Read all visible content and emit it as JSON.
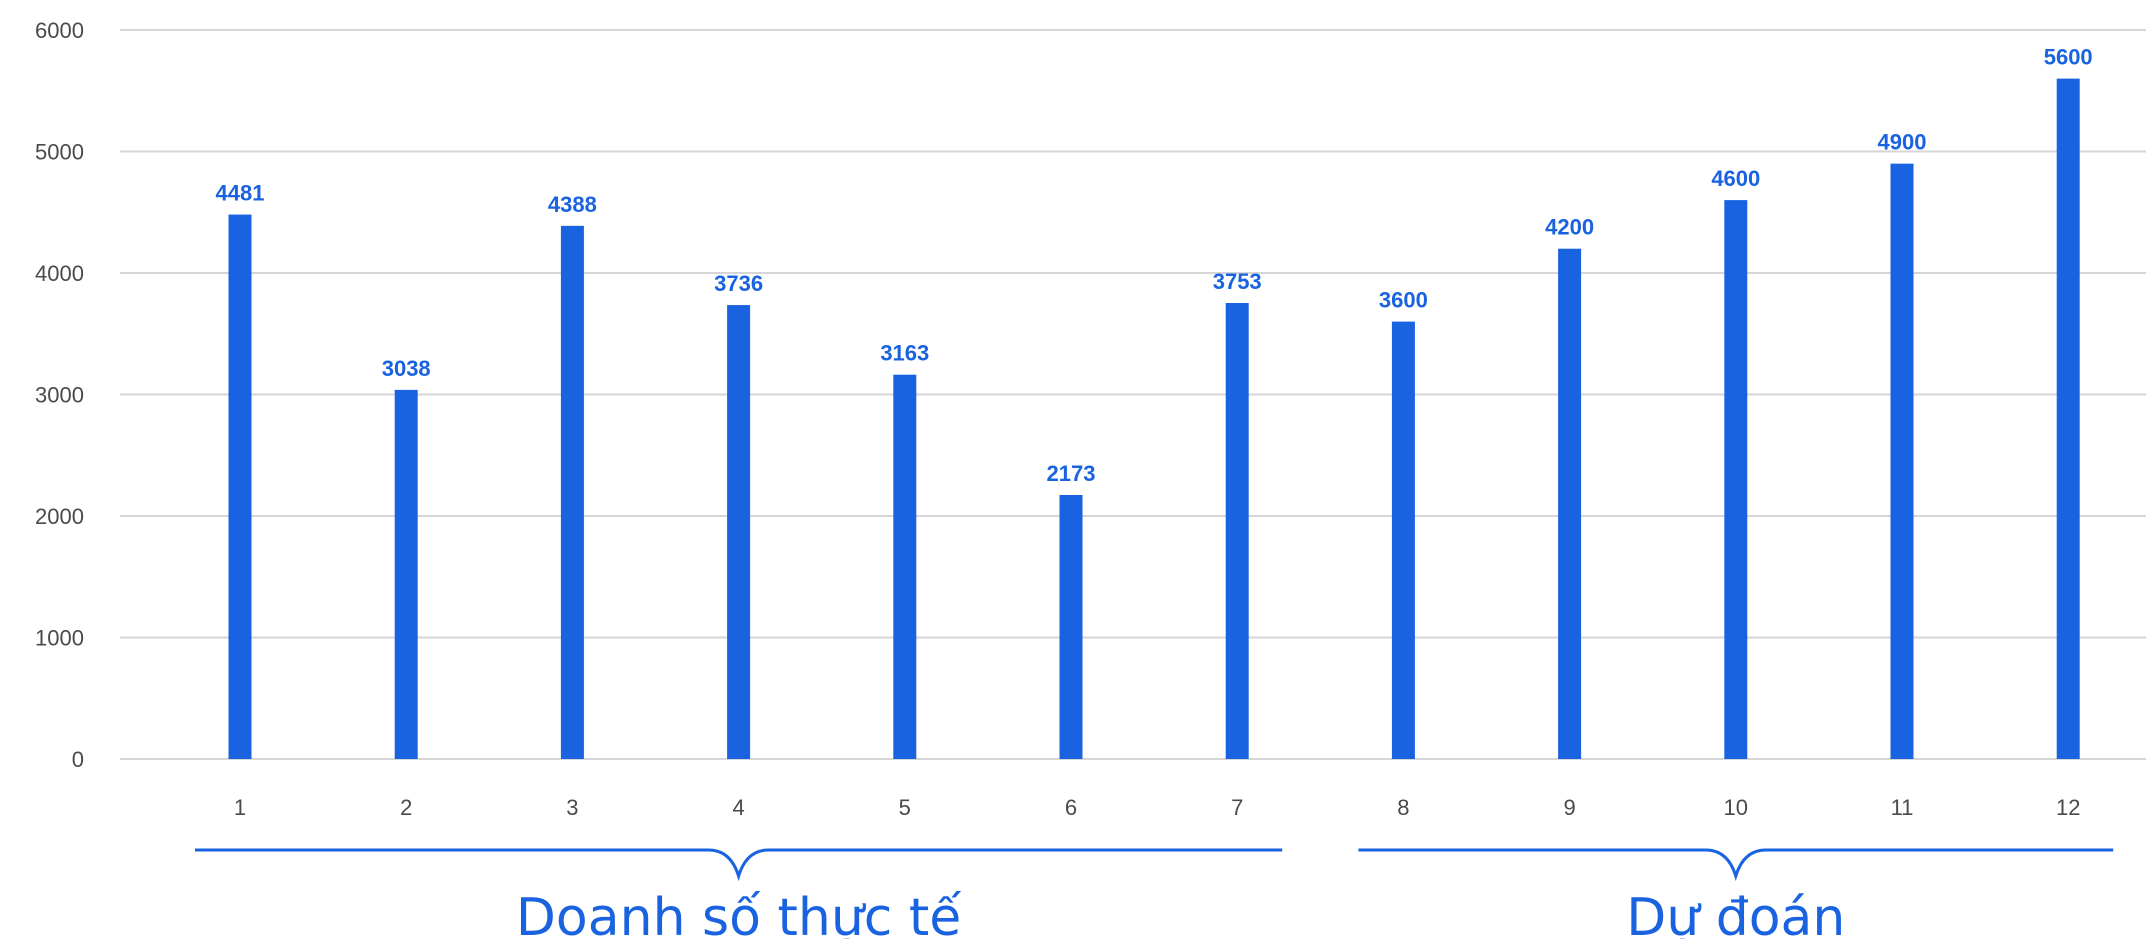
{
  "chart_data": {
    "type": "bar",
    "categories": [
      "1",
      "2",
      "3",
      "4",
      "5",
      "6",
      "7",
      "8",
      "9",
      "10",
      "11",
      "12"
    ],
    "values": [
      4481,
      3038,
      4388,
      3736,
      3163,
      2173,
      3753,
      3600,
      4200,
      4600,
      4900,
      5600
    ],
    "y_ticks": [
      "0",
      "1000",
      "2000",
      "3000",
      "4000",
      "5000",
      "6000"
    ],
    "ylim": [
      0,
      6000
    ],
    "grid": true,
    "bar_color": "#1a63e0",
    "label_color": "#1a63e0",
    "groups": [
      {
        "label": "Doanh số thực tế",
        "from": 1,
        "to": 7
      },
      {
        "label": "Dự đoán",
        "from": 8,
        "to": 12
      }
    ]
  }
}
